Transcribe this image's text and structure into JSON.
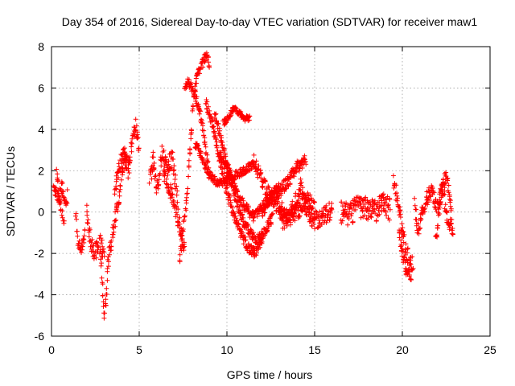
{
  "chart_data": {
    "type": "scatter",
    "title": "Day 354 of 2016, Sidereal Day-to-day VTEC variation (SDTVAR) for receiver maw1",
    "xlabel": "GPS time / hours",
    "ylabel": "SDTVAR / TECUs",
    "xlim": [
      0,
      25
    ],
    "ylim": [
      -6,
      8
    ],
    "xticks": [
      "0",
      "5",
      "10",
      "15",
      "20",
      "25"
    ],
    "yticks": [
      "-6",
      "-4",
      "-2",
      "0",
      "2",
      "4",
      "6",
      "8"
    ],
    "grid": true,
    "marker": "+",
    "color": "#ff0000",
    "series": [
      {
        "name": "SDTVAR",
        "tracks": [
          {
            "x": [
              0.0,
              0.2,
              0.4,
              0.6,
              0.8,
              0.9
            ],
            "y": [
              0.9,
              1.1,
              0.6,
              1.2,
              0.2,
              0.8
            ],
            "spread": 0.7
          },
          {
            "x": [
              0.3,
              0.5,
              0.7
            ],
            "y": [
              2.0,
              0.3,
              -0.4
            ],
            "spread": 0.5
          },
          {
            "x": [
              1.4,
              1.5,
              1.7,
              1.9
            ],
            "y": [
              -0.3,
              -1.5,
              -1.8,
              -1.1
            ],
            "spread": 0.5
          },
          {
            "x": [
              2.0,
              2.2,
              2.4,
              2.6,
              2.8,
              3.0
            ],
            "y": [
              0.1,
              -1.2,
              -2.0,
              -1.8,
              -1.5,
              -2.2
            ],
            "spread": 0.9
          },
          {
            "x": [
              2.8,
              2.9,
              3.0,
              3.1,
              3.2
            ],
            "y": [
              -2.0,
              -3.5,
              -4.8,
              -4.5,
              -3.0
            ],
            "spread": 0.8
          },
          {
            "x": [
              3.2,
              3.4,
              3.6,
              3.8,
              4.0,
              4.2,
              4.4
            ],
            "y": [
              -2.5,
              -1.5,
              -0.5,
              0.5,
              1.8,
              2.5,
              2.0
            ],
            "spread": 0.9
          },
          {
            "x": [
              3.6,
              3.8,
              4.0,
              4.2,
              4.4,
              4.6,
              4.8,
              5.0
            ],
            "y": [
              1.0,
              2.0,
              2.6,
              3.0,
              2.2,
              3.5,
              4.2,
              3.0
            ],
            "spread": 0.7
          },
          {
            "x": [
              5.6,
              5.8,
              6.0,
              6.3,
              6.6,
              6.9,
              7.2
            ],
            "y": [
              1.5,
              2.5,
              1.0,
              2.8,
              2.2,
              2.6,
              0.5
            ],
            "spread": 0.9
          },
          {
            "x": [
              6.4,
              6.8,
              7.1,
              7.4,
              7.6
            ],
            "y": [
              1.8,
              1.0,
              0.0,
              -1.0,
              -1.8
            ],
            "spread": 0.8
          },
          {
            "x": [
              7.3,
              7.5,
              7.7,
              7.9,
              8.1,
              8.3,
              8.5,
              8.7,
              8.9,
              9.0
            ],
            "y": [
              -2.5,
              -0.8,
              0.5,
              3.0,
              5.5,
              6.5,
              7.0,
              7.4,
              7.5,
              7.2
            ],
            "spread": 0.5
          },
          {
            "x": [
              7.6,
              7.8,
              8.0,
              8.2,
              8.4,
              8.6,
              8.8,
              9.0
            ],
            "y": [
              6.0,
              6.3,
              6.0,
              5.6,
              5.0,
              4.2,
              3.0,
              1.8
            ],
            "spread": 0.5
          },
          {
            "x": [
              8.2,
              8.6,
              9.0,
              9.5,
              10.0,
              10.5,
              11.0,
              11.5
            ],
            "y": [
              3.3,
              2.6,
              1.8,
              1.4,
              1.5,
              1.8,
              2.0,
              2.3
            ],
            "spread": 0.4
          },
          {
            "x": [
              8.8,
              9.2,
              9.6,
              10.0,
              10.4,
              10.8,
              11.2,
              11.6,
              12.0
            ],
            "y": [
              5.3,
              4.2,
              2.5,
              1.0,
              -0.2,
              -1.1,
              -1.7,
              -2.0,
              -1.3
            ],
            "spread": 0.5
          },
          {
            "x": [
              9.3,
              9.6,
              9.9,
              10.2,
              10.6,
              11.0,
              11.5,
              12.0,
              12.5,
              13.0
            ],
            "y": [
              4.8,
              3.8,
              2.6,
              1.8,
              0.8,
              0.3,
              -0.2,
              0.2,
              0.8,
              1.3
            ],
            "spread": 0.5
          },
          {
            "x": [
              9.8,
              10.1,
              10.4,
              10.7,
              11.0,
              11.3
            ],
            "y": [
              4.3,
              4.6,
              5.0,
              4.8,
              4.5,
              4.6
            ],
            "spread": 0.3
          },
          {
            "x": [
              9.6,
              9.9,
              10.2,
              10.5,
              10.9,
              11.3,
              11.7,
              12.1,
              12.6
            ],
            "y": [
              2.8,
              2.2,
              1.6,
              0.6,
              -0.4,
              -1.0,
              -1.4,
              -1.0,
              -0.3
            ],
            "spread": 0.5
          },
          {
            "x": [
              11.5,
              12.0,
              12.5,
              13.0,
              13.5,
              14.0,
              14.5,
              15.0
            ],
            "y": [
              2.5,
              1.5,
              0.7,
              0.2,
              -0.3,
              0.0,
              0.6,
              0.3
            ],
            "spread": 0.8
          },
          {
            "x": [
              12.0,
              12.5,
              13.0,
              13.5,
              14.0,
              14.5
            ],
            "y": [
              0.0,
              0.6,
              1.0,
              1.5,
              2.2,
              2.5
            ],
            "spread": 0.6
          },
          {
            "x": [
              13.0,
              13.4,
              13.8,
              14.2,
              14.6,
              15.0,
              15.5,
              16.0
            ],
            "y": [
              -0.2,
              -0.5,
              0.2,
              1.2,
              0.0,
              -0.4,
              -0.2,
              0.1
            ],
            "spread": 0.9
          },
          {
            "x": [
              16.5,
              17.0,
              17.5,
              18.0,
              18.5,
              19.0,
              19.3
            ],
            "y": [
              0.0,
              -0.1,
              0.3,
              0.2,
              0.0,
              0.5,
              0.1
            ],
            "spread": 1.1
          },
          {
            "x": [
              19.5,
              19.8,
              20.1,
              20.4,
              20.6
            ],
            "y": [
              1.5,
              0.2,
              -1.5,
              -2.4,
              -2.6
            ],
            "spread": 0.9
          },
          {
            "x": [
              19.8,
              20.0,
              20.2,
              20.4,
              20.5
            ],
            "y": [
              -1.0,
              -2.0,
              -2.8,
              -3.0,
              -3.2
            ],
            "spread": 0.5
          },
          {
            "x": [
              20.7,
              20.9,
              21.1,
              21.4,
              21.7,
              22.0,
              22.3,
              22.6,
              22.9
            ],
            "y": [
              0.3,
              -1.0,
              -0.2,
              0.7,
              1.0,
              0.2,
              1.2,
              -0.5,
              -0.8
            ],
            "spread": 0.8
          },
          {
            "x": [
              21.9,
              22.2,
              22.5,
              22.8
            ],
            "y": [
              -1.5,
              0.8,
              1.8,
              0.2
            ],
            "spread": 0.7
          }
        ]
      }
    ]
  }
}
